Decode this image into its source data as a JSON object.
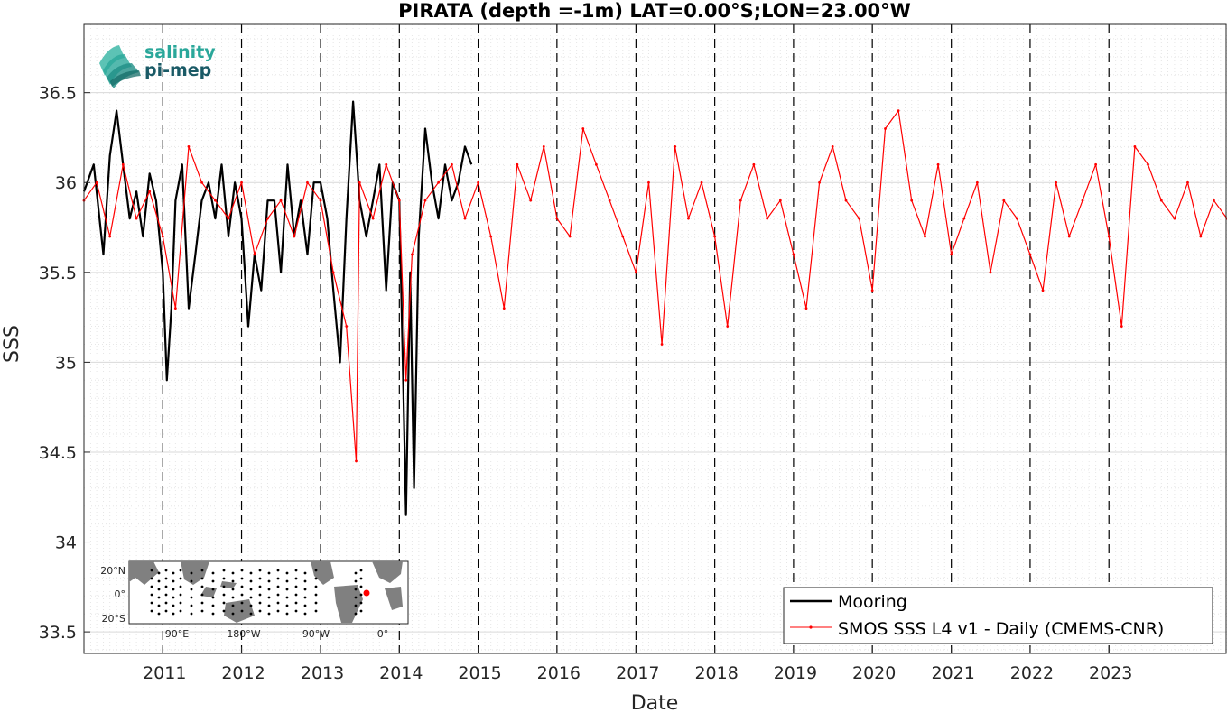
{
  "chart_data": {
    "type": "line",
    "title": "PIRATA (depth =-1m) LAT=0.00°S;LON=23.00°W",
    "xlabel": "Date",
    "ylabel": "SSS",
    "xlim": [
      "2010-01-01",
      "2024-07-01"
    ],
    "ylim": [
      33.38,
      36.88
    ],
    "x_ticks": [
      "2011",
      "2012",
      "2013",
      "2014",
      "2015",
      "2016",
      "2017",
      "2018",
      "2019",
      "2020",
      "2021",
      "2022",
      "2023"
    ],
    "y_ticks": [
      "33.5",
      "34",
      "34.5",
      "35",
      "35.5",
      "36",
      "36.5"
    ],
    "grid": "on",
    "year_dividers": "dashed",
    "legend_position": "bottom-right",
    "series": [
      {
        "name": "Mooring",
        "color": "#000000",
        "x": [
          "2010-01-01",
          "2010-02-15",
          "2010-04-01",
          "2010-05-01",
          "2010-06-01",
          "2010-07-01",
          "2010-08-01",
          "2010-09-01",
          "2010-10-01",
          "2010-11-01",
          "2010-12-01",
          "2011-01-01",
          "2011-01-20",
          "2011-02-10",
          "2011-03-01",
          "2011-04-01",
          "2011-05-01",
          "2011-06-01",
          "2011-07-01",
          "2011-08-01",
          "2011-09-01",
          "2011-10-01",
          "2011-11-01",
          "2011-12-01",
          "2012-01-01",
          "2012-02-01",
          "2012-03-01",
          "2012-04-01",
          "2012-05-01",
          "2012-06-01",
          "2012-07-01",
          "2012-08-01",
          "2012-09-01",
          "2012-10-01",
          "2012-11-01",
          "2012-12-01",
          "2013-01-01",
          "2013-02-01",
          "2013-03-01",
          "2013-04-01",
          "2013-05-01",
          "2013-06-01",
          "2013-07-01",
          "2013-08-01",
          "2013-09-01",
          "2013-10-01",
          "2013-11-01",
          "2013-12-01",
          "2014-01-01",
          "2014-02-01",
          "2014-02-20",
          "2014-03-10",
          "2014-04-01",
          "2014-05-01",
          "2014-06-01",
          "2014-07-01",
          "2014-08-01",
          "2014-09-01",
          "2014-10-01",
          "2014-11-01",
          "2014-12-01"
        ],
        "values": [
          35.95,
          36.1,
          35.6,
          36.15,
          36.4,
          36.1,
          35.8,
          35.95,
          35.7,
          36.05,
          35.9,
          35.5,
          34.9,
          35.3,
          35.9,
          36.1,
          35.3,
          35.6,
          35.9,
          36.0,
          35.8,
          36.1,
          35.7,
          36.0,
          35.8,
          35.2,
          35.6,
          35.4,
          35.9,
          35.9,
          35.5,
          36.1,
          35.7,
          35.9,
          35.6,
          36.0,
          36.0,
          35.8,
          35.4,
          35.0,
          35.8,
          36.45,
          35.9,
          35.7,
          35.9,
          36.1,
          35.4,
          36.0,
          35.9,
          34.15,
          35.5,
          34.3,
          35.7,
          36.3,
          36.0,
          35.8,
          36.1,
          35.9,
          36.0,
          36.2,
          36.1
        ]
      },
      {
        "name": "SMOS SSS L4 v1 - Daily (CMEMS-CNR)",
        "color": "#ff0000",
        "x": [
          "2010-01-01",
          "2010-03-01",
          "2010-05-01",
          "2010-07-01",
          "2010-09-01",
          "2010-11-01",
          "2011-01-01",
          "2011-03-01",
          "2011-05-01",
          "2011-07-01",
          "2011-09-01",
          "2011-11-01",
          "2012-01-01",
          "2012-03-01",
          "2012-05-01",
          "2012-07-01",
          "2012-09-01",
          "2012-11-01",
          "2013-01-01",
          "2013-03-01",
          "2013-05-01",
          "2013-06-15",
          "2013-07-01",
          "2013-09-01",
          "2013-11-01",
          "2014-01-01",
          "2014-02-01",
          "2014-03-01",
          "2014-05-01",
          "2014-07-01",
          "2014-09-01",
          "2014-11-01",
          "2015-01-01",
          "2015-03-01",
          "2015-05-01",
          "2015-07-01",
          "2015-09-01",
          "2015-11-01",
          "2016-01-01",
          "2016-03-01",
          "2016-05-01",
          "2016-07-01",
          "2016-09-01",
          "2016-11-01",
          "2017-01-01",
          "2017-03-01",
          "2017-05-01",
          "2017-07-01",
          "2017-09-01",
          "2017-11-01",
          "2018-01-01",
          "2018-03-01",
          "2018-05-01",
          "2018-07-01",
          "2018-09-01",
          "2018-11-01",
          "2019-01-01",
          "2019-03-01",
          "2019-05-01",
          "2019-07-01",
          "2019-09-01",
          "2019-11-01",
          "2020-01-01",
          "2020-03-01",
          "2020-05-01",
          "2020-07-01",
          "2020-09-01",
          "2020-11-01",
          "2021-01-01",
          "2021-03-01",
          "2021-05-01",
          "2021-07-01",
          "2021-09-01",
          "2021-11-01",
          "2022-01-01",
          "2022-03-01",
          "2022-05-01",
          "2022-07-01",
          "2022-09-01",
          "2022-11-01",
          "2023-01-01",
          "2023-03-01",
          "2023-05-01",
          "2023-07-01",
          "2023-09-01",
          "2023-11-01",
          "2024-01-01",
          "2024-03-01",
          "2024-05-01",
          "2024-07-01"
        ],
        "values": [
          35.9,
          36.0,
          35.7,
          36.1,
          35.8,
          35.95,
          35.7,
          35.3,
          36.2,
          36.0,
          35.9,
          35.8,
          36.0,
          35.6,
          35.8,
          35.9,
          35.7,
          36.0,
          35.9,
          35.5,
          35.2,
          34.45,
          36.0,
          35.8,
          36.1,
          35.9,
          34.9,
          35.6,
          35.9,
          36.0,
          36.1,
          35.8,
          36.0,
          35.7,
          35.3,
          36.1,
          35.9,
          36.2,
          35.8,
          35.7,
          36.3,
          36.1,
          35.9,
          35.7,
          35.5,
          36.0,
          35.1,
          36.2,
          35.8,
          36.0,
          35.7,
          35.2,
          35.9,
          36.1,
          35.8,
          35.9,
          35.6,
          35.3,
          36.0,
          36.2,
          35.9,
          35.8,
          35.4,
          36.3,
          36.4,
          35.9,
          35.7,
          36.1,
          35.6,
          35.8,
          36.0,
          35.5,
          35.9,
          35.8,
          35.6,
          35.4,
          36.0,
          35.7,
          35.9,
          36.1,
          35.7,
          35.2,
          36.2,
          36.1,
          35.9,
          35.8,
          36.0,
          35.7,
          35.9,
          35.8
        ]
      }
    ]
  },
  "logo": {
    "line1": "salinity",
    "line2": "pi-mep"
  },
  "inset_map": {
    "lat_ticks": [
      "20°N",
      "0°",
      "20°S"
    ],
    "lon_ticks": [
      "90°E",
      "180°W",
      "90°W",
      "0°"
    ],
    "land_color": "#808080",
    "marker_color": "#ff0000"
  }
}
